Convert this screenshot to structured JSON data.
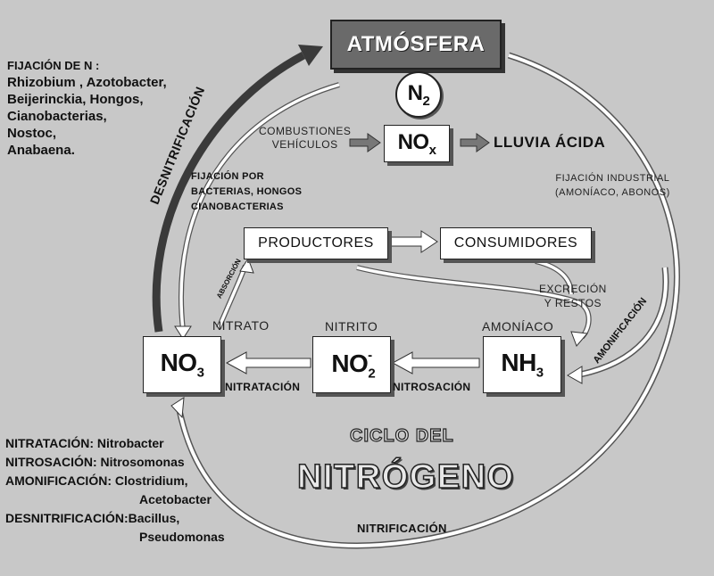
{
  "atmosfera": "ATMÓSFERA",
  "n2": {
    "base": "N",
    "sub": "2"
  },
  "fijacion_n": {
    "title": "FIJACIÓN DE N :",
    "lines": [
      "Rhizobium , Azotobacter,",
      "Beijerinckia, Hongos,",
      "Cianobacterias,",
      "Nostoc,",
      "Anabaena."
    ]
  },
  "desnitrificacion_arrow": "DESNITRIFICACIÓN",
  "combustiones": [
    "COMBUSTIONES",
    "VEHÍCULOS"
  ],
  "nox": {
    "base": "NO",
    "sub": "x"
  },
  "lluvia_acida": "LLUVIA ÁCIDA",
  "fijacion_bacterias": [
    "FIJACIÓN POR",
    "BACTERIAS, HONGOS",
    "CIANOBACTERIAS"
  ],
  "fijacion_industrial": [
    "FIJACIÓN INDUSTRIAL",
    "(AMONÍACO, ABONOS)"
  ],
  "productores": "PRODUCTORES",
  "consumidores": "CONSUMIDORES",
  "absorcion": "ABSORCIÓN",
  "excrecion": [
    "EXCRECIÓN",
    "Y RESTOS"
  ],
  "amonificacion_arrow": "AMONIFICACIÓN",
  "nitrato_label": "NITRATO",
  "nitrito_label": "NITRITO",
  "amoniaco_label": "AMONÍACO",
  "no3": {
    "base": "NO",
    "sub": "3"
  },
  "no2": {
    "base": "NO",
    "sub": "2",
    "sup": "-"
  },
  "nh3": {
    "base": "NH",
    "sub": "3"
  },
  "nitratacion": "NITRATACIÓN",
  "nitrosacion": "NITROSACIÓN",
  "ciclo_del": "CICLO DEL",
  "nitrogeno": "NITRÓGENO",
  "nitrificacion": "NITRIFICACIÓN",
  "bottom_list": [
    "NITRATACIÓN: Nitrobacter",
    "NITROSACIÓN: Nitrosomonas",
    "AMONIFICACIÓN: Clostridium,",
    "Acetobacter",
    "DESNITRIFICACIÓN:Bacillus,",
    "Pseudomonas"
  ]
}
